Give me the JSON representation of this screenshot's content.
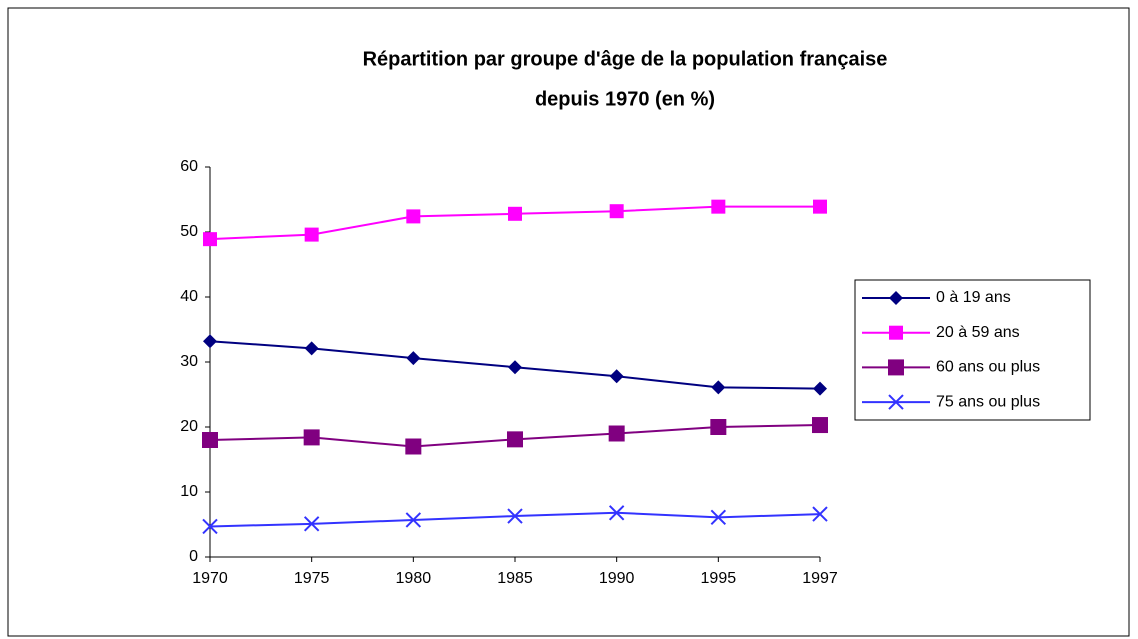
{
  "chart_data": {
    "type": "line",
    "title": [
      "Répartition par groupe d'âge de la population française",
      "depuis 1970 (en %)"
    ],
    "categories": [
      "1970",
      "1975",
      "1980",
      "1985",
      "1990",
      "1995",
      "1997"
    ],
    "series": [
      {
        "name": "0 à 19 ans",
        "color": "#000080",
        "marker": "diamond",
        "values": [
          33.2,
          32.1,
          30.6,
          29.2,
          27.8,
          26.1,
          25.9
        ]
      },
      {
        "name": "20 à 59 ans",
        "color": "#ff00ff",
        "marker": "square",
        "values": [
          48.9,
          49.6,
          52.4,
          52.8,
          53.2,
          53.9,
          53.9
        ]
      },
      {
        "name": "60 ans ou plus",
        "color": "#800080",
        "marker": "square",
        "values": [
          18.0,
          18.4,
          17.0,
          18.1,
          19.0,
          20.0,
          20.3
        ]
      },
      {
        "name": "75 ans ou plus",
        "color": "#3333ff",
        "marker": "x",
        "values": [
          4.7,
          5.1,
          5.7,
          6.3,
          6.8,
          6.1,
          6.6
        ]
      }
    ],
    "ylim": [
      0,
      60
    ],
    "yticks": [
      0,
      10,
      20,
      30,
      40,
      50,
      60
    ],
    "grid": false,
    "legend": "right"
  }
}
